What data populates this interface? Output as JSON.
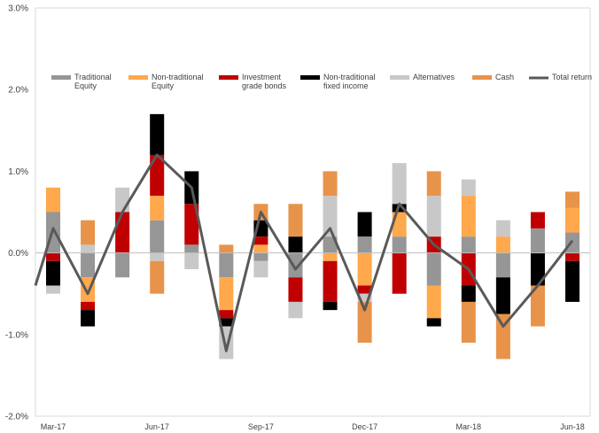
{
  "chart_data": {
    "type": "bar",
    "stacked": true,
    "categories": [
      "Mar-17",
      "Apr-17",
      "May-17",
      "Jun-17",
      "Jul-17",
      "Aug-17",
      "Sep-17",
      "Oct-17",
      "Nov-17",
      "Dec-17",
      "Jan-18",
      "Feb-18",
      "Mar-18",
      "Apr-18",
      "May-18",
      "Jun-18"
    ],
    "x_tick_labels": [
      "Mar-17",
      "Jun-17",
      "Sep-17",
      "Dec-17",
      "Mar-18",
      "Jun-18"
    ],
    "y_ticks": [
      "-2.0%",
      "-1.0%",
      "0.0%",
      "1.0%",
      "2.0%",
      "3.0%"
    ],
    "ylim": [
      -2.0,
      3.0
    ],
    "y_unit": "%",
    "grid": false,
    "legend_position": "top",
    "series": [
      {
        "name": "Traditional\nEquity",
        "color": "#969696",
        "values": [
          0.5,
          -0.3,
          -0.3,
          0.4,
          0.1,
          -0.3,
          -0.1,
          -0.3,
          0.2,
          0.2,
          0.2,
          -0.4,
          0.2,
          -0.3,
          0.3,
          0.25
        ]
      },
      {
        "name": "Non-traditional\nEquity",
        "color": "#FFA84C",
        "values": [
          0.3,
          -0.3,
          0.0,
          0.3,
          0.0,
          -0.4,
          0.1,
          0.0,
          -0.1,
          -0.4,
          0.3,
          -0.4,
          0.5,
          0.2,
          0.0,
          0.3
        ]
      },
      {
        "name": "Investment\ngrade bonds",
        "color": "#C00000",
        "values": [
          -0.1,
          -0.1,
          0.5,
          0.5,
          0.5,
          -0.1,
          0.1,
          -0.3,
          -0.5,
          -0.1,
          -0.5,
          0.2,
          -0.4,
          0.0,
          0.2,
          -0.1
        ]
      },
      {
        "name": "Non-traditional\nfixed income",
        "color": "#000000",
        "values": [
          -0.3,
          -0.2,
          0.0,
          0.5,
          0.4,
          -0.1,
          0.2,
          0.2,
          -0.1,
          0.3,
          0.1,
          -0.1,
          -0.2,
          -0.45,
          -0.4,
          -0.5
        ]
      },
      {
        "name": "Alternatives",
        "color": "#C8C8C8",
        "values": [
          -0.1,
          0.1,
          0.3,
          -0.1,
          -0.2,
          -0.4,
          -0.2,
          -0.2,
          0.5,
          -0.1,
          0.5,
          0.5,
          0.2,
          0.2,
          0.0,
          0.0
        ]
      },
      {
        "name": "Cash",
        "color": "#E8934A",
        "values": [
          0.0,
          0.3,
          0.0,
          -0.4,
          0.0,
          0.1,
          0.2,
          0.4,
          0.3,
          -0.5,
          0.0,
          0.3,
          -0.5,
          -0.55,
          -0.5,
          0.2
        ]
      }
    ],
    "line": {
      "name": "Total return",
      "color": "#595959",
      "values": [
        0.3,
        -0.5,
        0.5,
        1.2,
        0.8,
        -1.2,
        0.5,
        -0.2,
        0.3,
        -0.7,
        0.6,
        0.1,
        -0.2,
        -0.9,
        -0.4,
        0.15
      ]
    }
  }
}
